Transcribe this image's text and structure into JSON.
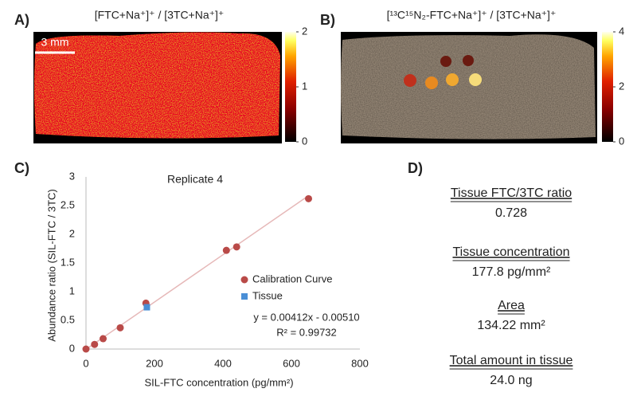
{
  "panels": {
    "a": {
      "label": "A)",
      "title": "[FTC+Na⁺]⁺ / [3TC+Na⁺]⁺",
      "scale_bar": "3 mm",
      "colorbar": {
        "lim": [
          0,
          2
        ],
        "ticks": [
          0,
          1,
          2
        ]
      }
    },
    "b": {
      "label": "B)",
      "title": "[¹³C¹⁵N₂-FTC+Na⁺]⁺ / [3TC+Na⁺]⁺",
      "colorbar": {
        "lim": [
          0,
          4
        ],
        "ticks": [
          0,
          2,
          4
        ]
      }
    },
    "c": {
      "label": "C)"
    },
    "d": {
      "label": "D)",
      "items": [
        {
          "heading": "Tissue FTC/3TC ratio",
          "value": "0.728"
        },
        {
          "heading": "Tissue concentration",
          "value": "177.8 pg/mm²"
        },
        {
          "heading": "Area",
          "value": "134.22 mm²"
        },
        {
          "heading": "Total amount in tissue",
          "value": "24.0 ng"
        }
      ]
    }
  },
  "chart_data": {
    "type": "scatter",
    "title": "Replicate 4",
    "x_label": "SIL-FTC concentration (pg/mm²)",
    "y_label": "Abundance ratio (SIL-FTC / 3TC)",
    "xlim": [
      0,
      800
    ],
    "xticks": [
      0,
      200,
      400,
      600,
      800
    ],
    "ylim": [
      0,
      3
    ],
    "yticks": [
      0,
      0.5,
      1,
      1.5,
      2,
      2.5,
      3
    ],
    "series": [
      {
        "name": "Calibration Curve",
        "color": "#b94a48",
        "marker": "circle",
        "x": [
          0,
          25,
          50,
          100,
          175,
          410,
          440,
          650
        ],
        "values": [
          0,
          0.08,
          0.18,
          0.37,
          0.8,
          1.72,
          1.78,
          2.62
        ]
      },
      {
        "name": "Tissue",
        "color": "#4a8fd6",
        "marker": "square",
        "x": [
          177.8
        ],
        "values": [
          0.728
        ]
      }
    ],
    "trendline": {
      "color": "#e6b8b8",
      "x": [
        0,
        650
      ],
      "values": [
        -0.0051,
        2.6729
      ]
    },
    "annotations": [
      "y = 0.00412x - 0.00510",
      "R² = 0.99732"
    ]
  }
}
